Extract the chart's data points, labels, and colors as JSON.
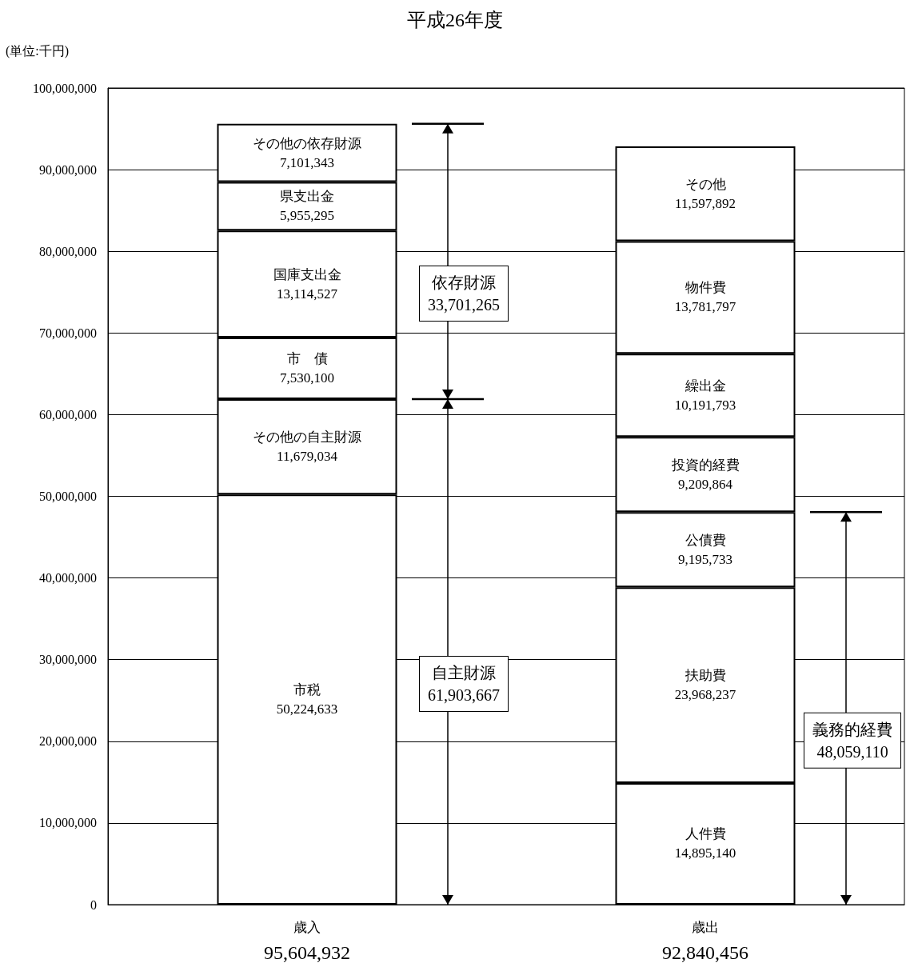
{
  "chart_data": {
    "type": "bar",
    "title": "平成26年度",
    "ylabel": "(単位:千円)",
    "stacked": true,
    "grid": "y",
    "categories": [
      "歳入",
      "歳出"
    ],
    "totals": [
      "95,604,932",
      "92,840,456"
    ],
    "ylim": [
      0,
      100000000
    ],
    "yticks": [
      {
        "value": 0,
        "label": "0"
      },
      {
        "value": 10000000,
        "label": "10,000,000"
      },
      {
        "value": 20000000,
        "label": "20,000,000"
      },
      {
        "value": 30000000,
        "label": "30,000,000"
      },
      {
        "value": 40000000,
        "label": "40,000,000"
      },
      {
        "value": 50000000,
        "label": "50,000,000"
      },
      {
        "value": 60000000,
        "label": "60,000,000"
      },
      {
        "value": 70000000,
        "label": "70,000,000"
      },
      {
        "value": 80000000,
        "label": "80,000,000"
      },
      {
        "value": 90000000,
        "label": "90,000,000"
      },
      {
        "value": 100000000,
        "label": "100,000,000"
      }
    ],
    "series": [
      {
        "name": "市税",
        "color": "#ffffff",
        "values": [
          50224633,
          null
        ],
        "value_labels": [
          "50,224,633",
          null
        ]
      },
      {
        "name": "その他の自主財源",
        "color": "#ffffff",
        "values": [
          11679034,
          null
        ],
        "value_labels": [
          "11,679,034",
          null
        ]
      },
      {
        "name": "市　債",
        "color": "#ffffff",
        "values": [
          7530100,
          null
        ],
        "value_labels": [
          "7,530,100",
          null
        ]
      },
      {
        "name": "国庫支出金",
        "color": "#ffffff",
        "values": [
          13114527,
          null
        ],
        "value_labels": [
          "13,114,527",
          null
        ]
      },
      {
        "name": "県支出金",
        "color": "#ffffff",
        "values": [
          5955295,
          null
        ],
        "value_labels": [
          "5,955,295",
          null
        ]
      },
      {
        "name": "その他の依存財源",
        "color": "#ffffff",
        "values": [
          7101343,
          null
        ],
        "value_labels": [
          "7,101,343",
          null
        ]
      },
      {
        "name": "人件費",
        "color": "#ffffff",
        "values": [
          null,
          14895140
        ],
        "value_labels": [
          null,
          "14,895,140"
        ]
      },
      {
        "name": "扶助費",
        "color": "#ffffff",
        "values": [
          null,
          23968237
        ],
        "value_labels": [
          null,
          "23,968,237"
        ]
      },
      {
        "name": "公債費",
        "color": "#ffffff",
        "values": [
          null,
          9195733
        ],
        "value_labels": [
          null,
          "9,195,733"
        ]
      },
      {
        "name": "投資的経費",
        "color": "#ffffff",
        "values": [
          null,
          9209864
        ],
        "value_labels": [
          null,
          "9,209,864"
        ]
      },
      {
        "name": "繰出金",
        "color": "#ffffff",
        "values": [
          null,
          10191793
        ],
        "value_labels": [
          null,
          "10,191,793"
        ]
      },
      {
        "name": "物件費",
        "color": "#ffffff",
        "values": [
          null,
          13781797
        ],
        "value_labels": [
          null,
          "13,781,797"
        ]
      },
      {
        "name": "その他",
        "color": "#ffffff",
        "values": [
          null,
          11597892
        ],
        "value_labels": [
          null,
          "11,597,892"
        ]
      }
    ],
    "annotations": [
      "自主財源\n61,903,667",
      "依存財源\n33,701,265",
      "義務的経費\n48,059,110"
    ]
  }
}
